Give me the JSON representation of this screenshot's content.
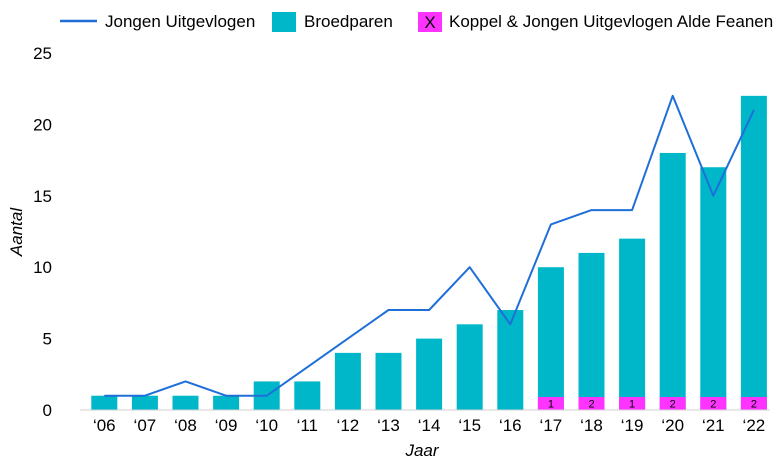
{
  "chart_data": {
    "type": "bar",
    "categories": [
      "‘06",
      "‘07",
      "‘08",
      "‘09",
      "‘10",
      "‘11",
      "‘12",
      "‘13",
      "‘14",
      "‘15",
      "‘16",
      "‘17",
      "‘18",
      "‘19",
      "‘20",
      "‘21",
      "‘22"
    ],
    "series": [
      {
        "name": "Broedparen",
        "type": "bar",
        "color": "#00B7C9",
        "values": [
          1,
          1,
          1,
          1,
          2,
          2,
          4,
          4,
          5,
          6,
          7,
          10,
          11,
          12,
          18,
          17,
          22
        ]
      },
      {
        "name": "Koppel & Jongen Uitgevlogen Alde Feanen",
        "type": "bar-segment",
        "color": "#FF33FF",
        "legend_marker": "X",
        "values": [
          0,
          0,
          0,
          0,
          0,
          0,
          0,
          0,
          0,
          0,
          0,
          1,
          2,
          1,
          2,
          2,
          2
        ],
        "labels": [
          "",
          "",
          "",
          "",
          "",
          "",
          "",
          "",
          "",
          "",
          "",
          "1",
          "2",
          "1",
          "2",
          "2",
          "2"
        ]
      },
      {
        "name": "Jongen Uitgevlogen",
        "type": "line",
        "color": "#1F6FD8",
        "values": [
          1,
          1,
          2,
          1,
          1,
          3,
          5,
          7,
          7,
          10,
          6,
          13,
          14,
          14,
          22,
          15,
          21
        ]
      }
    ],
    "xlabel": "Jaar",
    "ylabel": "Aantal",
    "ylim": [
      0,
      25
    ],
    "yticks": [
      "0",
      "5",
      "10",
      "15",
      "20",
      "25"
    ],
    "legend_position": "top",
    "grid": false
  }
}
